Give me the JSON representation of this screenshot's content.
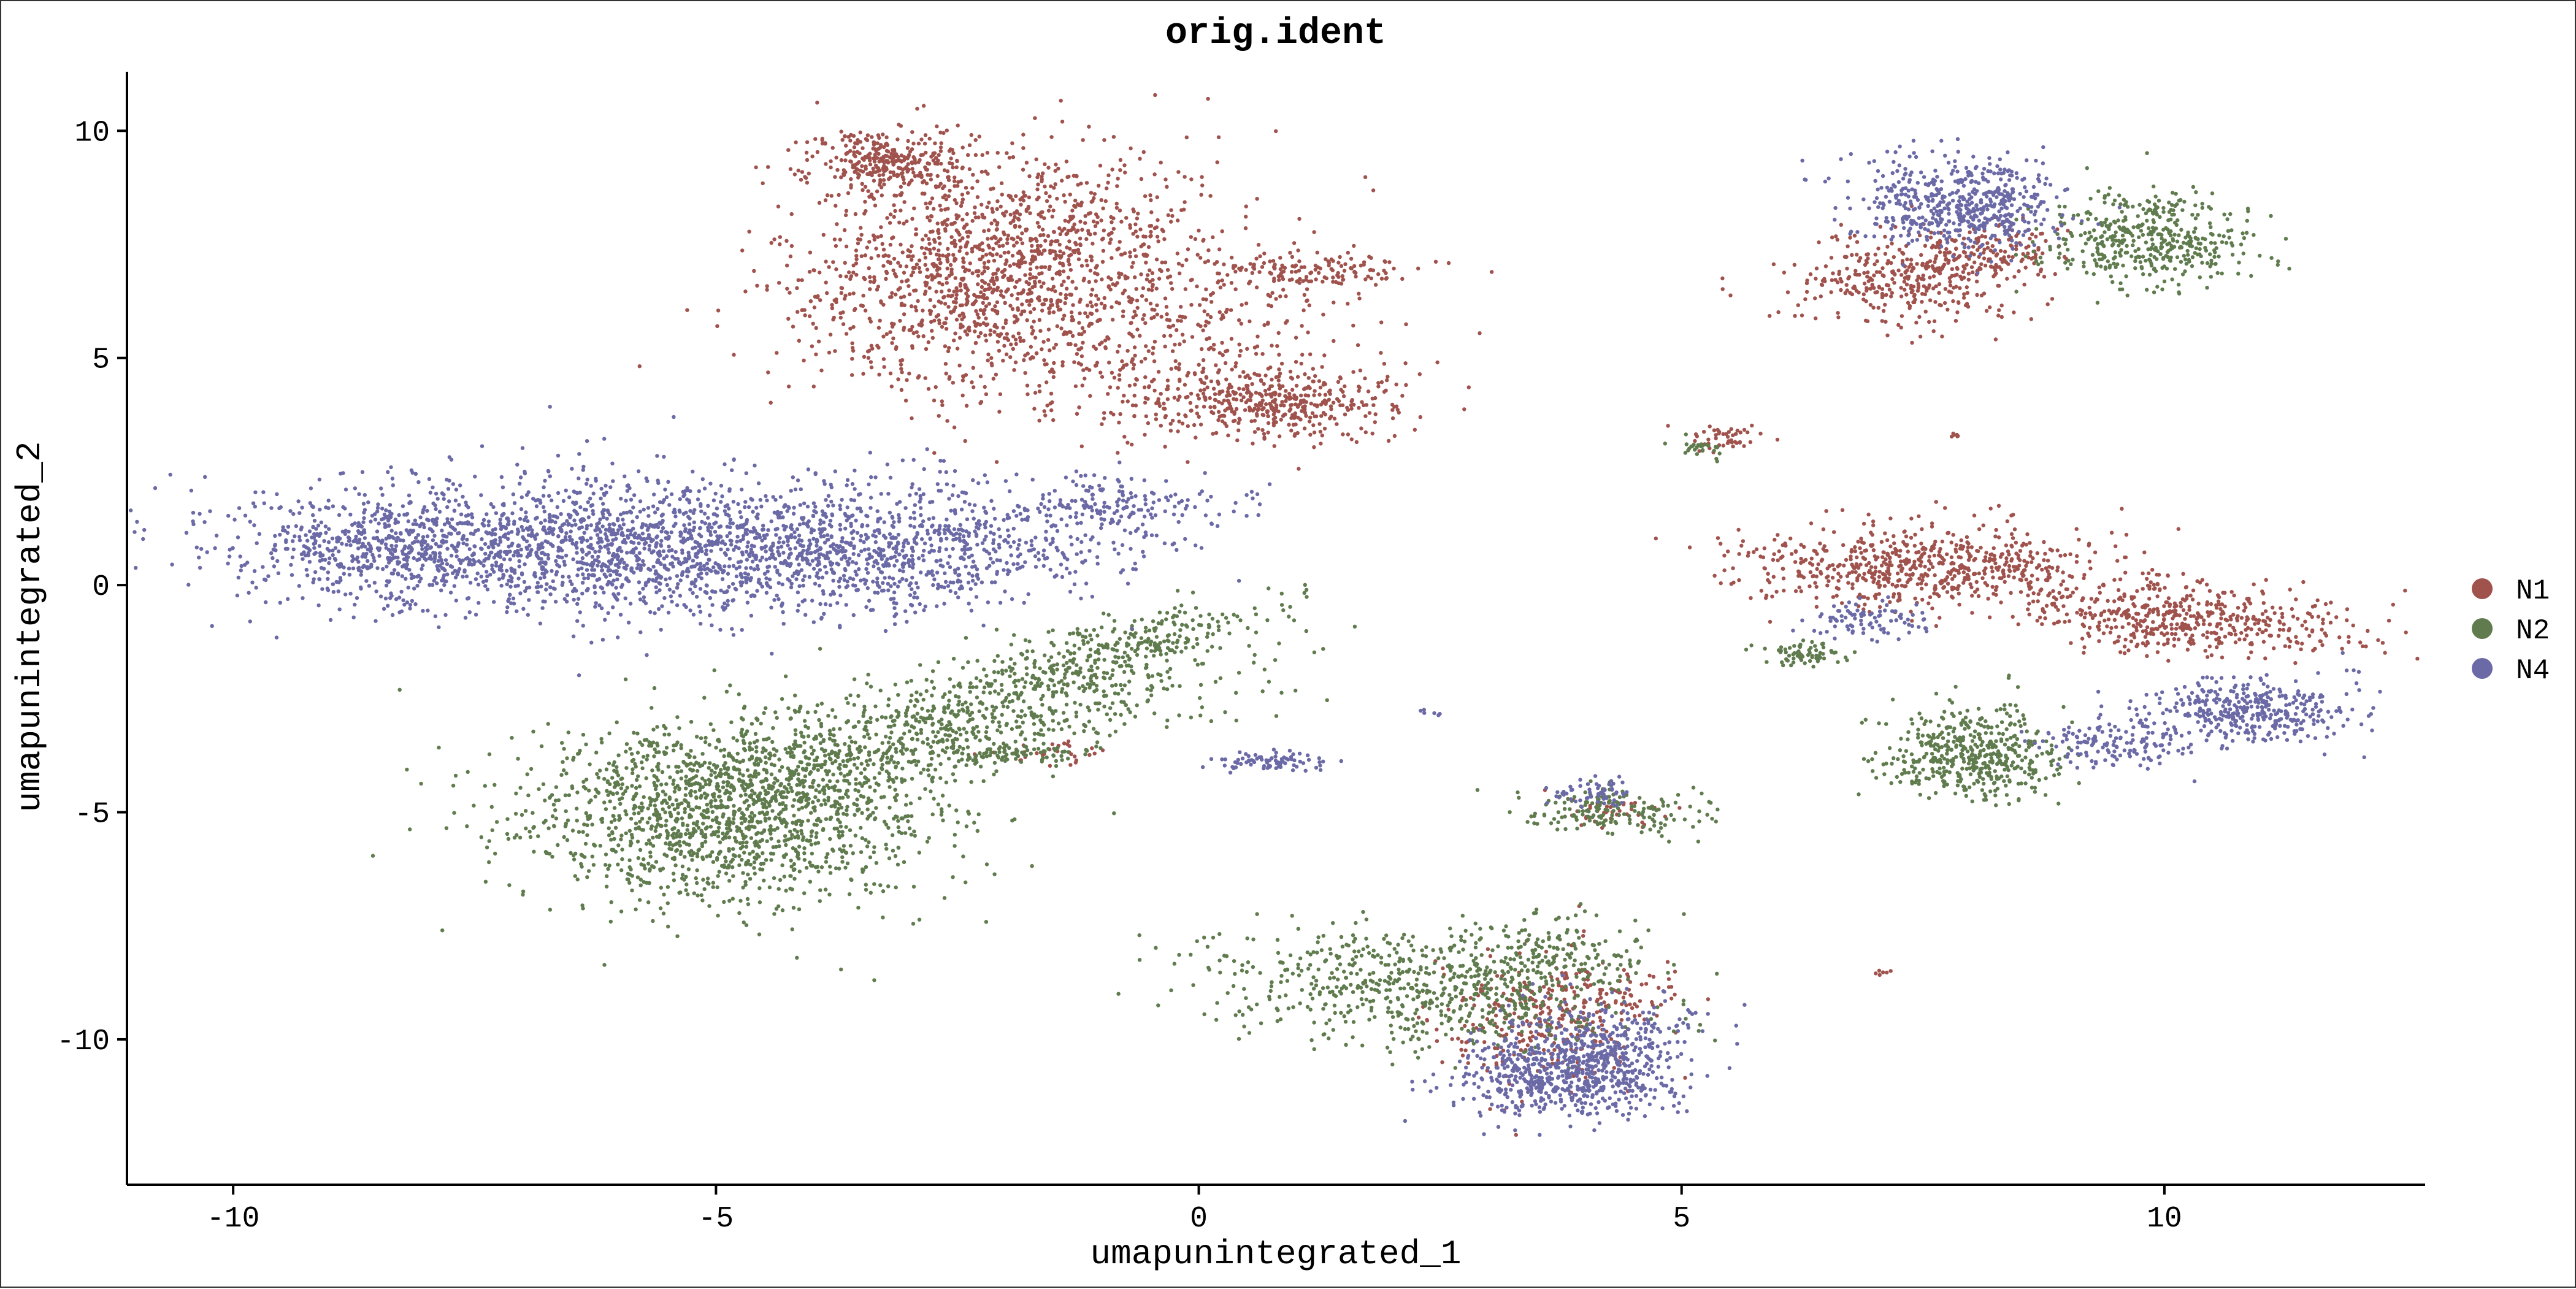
{
  "chart_data": {
    "type": "scatter",
    "title": "orig.ident",
    "xlabel": "umapunintegrated_1",
    "ylabel": "umapunintegrated_2",
    "xlim": [
      -11.1,
      12.7
    ],
    "ylim": [
      -13.2,
      11.3
    ],
    "x_ticks": [
      -10,
      -5,
      0,
      5,
      10
    ],
    "y_ticks": [
      -10,
      -5,
      0,
      5,
      10
    ],
    "x_tick_labels": [
      "-10",
      "-5",
      "0",
      "5",
      "10"
    ],
    "y_tick_labels": [
      "-10",
      "-5",
      "0",
      "5",
      "10"
    ],
    "grid": false,
    "legend_position": "right",
    "series": [
      {
        "name": "N1",
        "color": "#a0524d",
        "clusters": [
          {
            "cx": -2.1,
            "cy": 7.0,
            "sx": 0.9,
            "sy": 1.3,
            "rot": -35,
            "n": 1400
          },
          {
            "cx": -3.2,
            "cy": 9.3,
            "sx": 0.45,
            "sy": 0.4,
            "rot": 0,
            "n": 350
          },
          {
            "cx": 0.8,
            "cy": 4.0,
            "sx": 0.6,
            "sy": 0.35,
            "rot": 0,
            "n": 380
          },
          {
            "cx": 1.2,
            "cy": 6.9,
            "sx": 0.6,
            "sy": 0.2,
            "rot": 0,
            "n": 140
          },
          {
            "cx": -0.3,
            "cy": 5.2,
            "sx": 1.1,
            "sy": 1.0,
            "rot": 0,
            "n": 450
          },
          {
            "cx": 7.5,
            "cy": 0.4,
            "sx": 0.9,
            "sy": 0.45,
            "rot": 0,
            "n": 650
          },
          {
            "cx": 10.2,
            "cy": -0.7,
            "sx": 0.9,
            "sy": 0.4,
            "rot": -10,
            "n": 520
          },
          {
            "cx": 7.3,
            "cy": 6.7,
            "sx": 0.6,
            "sy": 0.5,
            "rot": 0,
            "n": 320
          },
          {
            "cx": 8.1,
            "cy": 7.3,
            "sx": 0.4,
            "sy": 0.35,
            "rot": 0,
            "n": 160
          },
          {
            "cx": 3.5,
            "cy": -9.6,
            "sx": 0.55,
            "sy": 0.7,
            "rot": 0,
            "n": 260
          },
          {
            "cx": 4.2,
            "cy": -9.0,
            "sx": 0.35,
            "sy": 0.3,
            "rot": 0,
            "n": 90
          },
          {
            "cx": 5.4,
            "cy": 3.2,
            "sx": 0.2,
            "sy": 0.14,
            "rot": 0,
            "n": 45
          },
          {
            "cx": -1.5,
            "cy": -3.7,
            "sx": 0.3,
            "sy": 0.15,
            "rot": 0,
            "n": 30
          },
          {
            "cx": 4.3,
            "cy": -5.0,
            "sx": 0.3,
            "sy": 0.2,
            "rot": 0,
            "n": 40
          },
          {
            "cx": 7.1,
            "cy": -8.5,
            "sx": 0.05,
            "sy": 0.05,
            "rot": 0,
            "n": 6
          },
          {
            "cx": 7.8,
            "cy": 3.3,
            "sx": 0.05,
            "sy": 0.05,
            "rot": 0,
            "n": 6
          }
        ]
      },
      {
        "name": "N2",
        "color": "#607c4e",
        "clusters": [
          {
            "cx": -4.9,
            "cy": -5.0,
            "sx": 1.1,
            "sy": 1.0,
            "rot": 0,
            "n": 1500
          },
          {
            "cx": -2.8,
            "cy": -3.2,
            "sx": 1.6,
            "sy": 0.55,
            "rot": 25,
            "n": 850
          },
          {
            "cx": -0.9,
            "cy": -1.4,
            "sx": 0.9,
            "sy": 0.3,
            "rot": 30,
            "n": 300
          },
          {
            "cx": 2.3,
            "cy": -8.9,
            "sx": 1.1,
            "sy": 0.6,
            "rot": -10,
            "n": 650
          },
          {
            "cx": 3.6,
            "cy": -8.1,
            "sx": 0.5,
            "sy": 0.45,
            "rot": 0,
            "n": 170
          },
          {
            "cx": 4.3,
            "cy": -5.0,
            "sx": 0.5,
            "sy": 0.25,
            "rot": 0,
            "n": 170
          },
          {
            "cx": 8.0,
            "cy": -3.7,
            "sx": 0.45,
            "sy": 0.5,
            "rot": 0,
            "n": 480
          },
          {
            "cx": 9.8,
            "cy": 7.6,
            "sx": 0.55,
            "sy": 0.5,
            "rot": 0,
            "n": 450
          },
          {
            "cx": 6.3,
            "cy": -1.5,
            "sx": 0.2,
            "sy": 0.12,
            "rot": 0,
            "n": 70
          },
          {
            "cx": 5.2,
            "cy": 3.0,
            "sx": 0.15,
            "sy": 0.1,
            "rot": 0,
            "n": 30
          },
          {
            "cx": -2.0,
            "cy": -3.7,
            "sx": 0.35,
            "sy": 0.12,
            "rot": 0,
            "n": 80
          }
        ]
      },
      {
        "name": "N4",
        "color": "#6b6aa6",
        "clusters": [
          {
            "cx": -6.2,
            "cy": 0.9,
            "sx": 1.8,
            "sy": 0.75,
            "rot": 0,
            "n": 2000
          },
          {
            "cx": -3.0,
            "cy": 0.8,
            "sx": 1.3,
            "sy": 0.7,
            "rot": 12,
            "n": 750
          },
          {
            "cx": -8.6,
            "cy": 0.8,
            "sx": 0.6,
            "sy": 0.5,
            "rot": 0,
            "n": 250
          },
          {
            "cx": -0.8,
            "cy": 1.8,
            "sx": 0.6,
            "sy": 0.25,
            "rot": 0,
            "n": 130
          },
          {
            "cx": 3.8,
            "cy": -10.8,
            "sx": 0.6,
            "sy": 0.45,
            "rot": 0,
            "n": 650
          },
          {
            "cx": 4.2,
            "cy": -9.8,
            "sx": 0.5,
            "sy": 0.45,
            "rot": 0,
            "n": 200
          },
          {
            "cx": 7.9,
            "cy": 8.4,
            "sx": 0.55,
            "sy": 0.5,
            "rot": 0,
            "n": 550
          },
          {
            "cx": 10.9,
            "cy": -2.8,
            "sx": 0.55,
            "sy": 0.35,
            "rot": 0,
            "n": 380
          },
          {
            "cx": 9.5,
            "cy": -3.5,
            "sx": 0.4,
            "sy": 0.25,
            "rot": 0,
            "n": 140
          },
          {
            "cx": 7.0,
            "cy": -0.8,
            "sx": 0.3,
            "sy": 0.2,
            "rot": 0,
            "n": 90
          },
          {
            "cx": 0.8,
            "cy": -3.9,
            "sx": 0.35,
            "sy": 0.1,
            "rot": 0,
            "n": 80
          },
          {
            "cx": 4.1,
            "cy": -4.6,
            "sx": 0.2,
            "sy": 0.15,
            "rot": 0,
            "n": 60
          },
          {
            "cx": 2.4,
            "cy": -2.8,
            "sx": 0.05,
            "sy": 0.05,
            "rot": 0,
            "n": 6
          }
        ]
      }
    ]
  }
}
